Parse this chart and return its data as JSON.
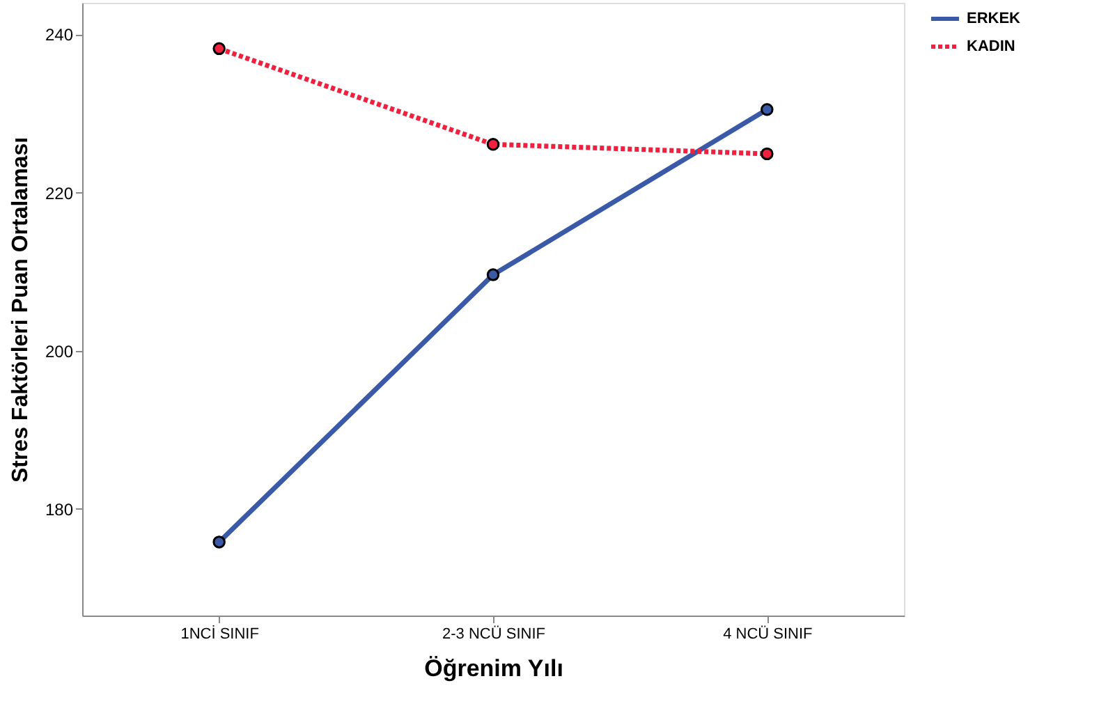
{
  "chart_data": {
    "type": "line",
    "xlabel": "Öğrenim Yılı",
    "ylabel": "Stres Faktörleri Puan Ortalaması",
    "categories": [
      "1NCİ SINIF",
      "2-3 NCÜ SINIF",
      "4 NCÜ SINIF"
    ],
    "series": [
      {
        "name": "ERKEK",
        "color": "#3a5aa8",
        "line_style": "solid",
        "values": [
          175.8,
          209.6,
          230.5
        ]
      },
      {
        "name": "KADIN",
        "color": "#f0213f",
        "line_style": "dotted",
        "values": [
          238.2,
          226.1,
          224.9
        ]
      }
    ],
    "ylim": [
      166.5,
      244
    ],
    "yticks": [
      180,
      200,
      220,
      240
    ],
    "grid": false,
    "legend": "top right",
    "marker": "circle"
  }
}
